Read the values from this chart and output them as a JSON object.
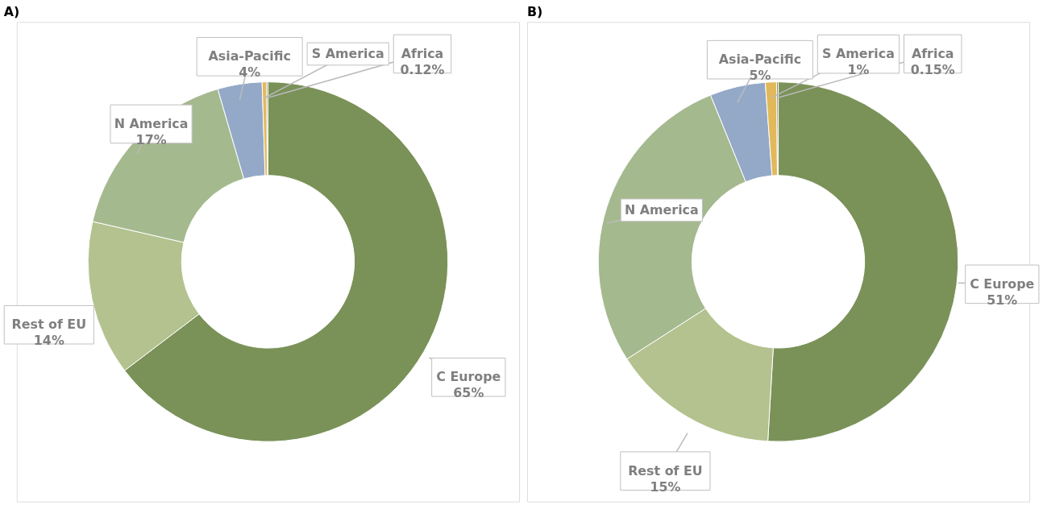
{
  "chart_data": [
    {
      "type": "donut",
      "title": "A)",
      "categories": [
        "C Europe",
        "Rest of EU",
        "N America",
        "Asia-Pacific",
        "S America",
        "Africa"
      ],
      "values": [
        65,
        14,
        17,
        4,
        0.4,
        0.12
      ],
      "value_labels": [
        "65%",
        "14%",
        "17%",
        "4%",
        null,
        "0.12%"
      ],
      "colors": [
        "#7a9158",
        "#b3c28e",
        "#a5b98f",
        "#94a9c8",
        "#e2b95a",
        "#8c8a6a"
      ]
    },
    {
      "type": "donut",
      "title": "B)",
      "categories": [
        "C Europe",
        "Rest of EU",
        "N America",
        "Asia-Pacific",
        "S America",
        "Africa"
      ],
      "values": [
        51,
        15,
        28,
        5,
        1,
        0.15
      ],
      "value_labels": [
        "51%",
        "15%",
        null,
        "5%",
        "1%",
        "0.15%"
      ],
      "colors": [
        "#7a9158",
        "#b3c28e",
        "#a5b98f",
        "#94a9c8",
        "#e2b95a",
        "#8c8a6a"
      ]
    }
  ]
}
